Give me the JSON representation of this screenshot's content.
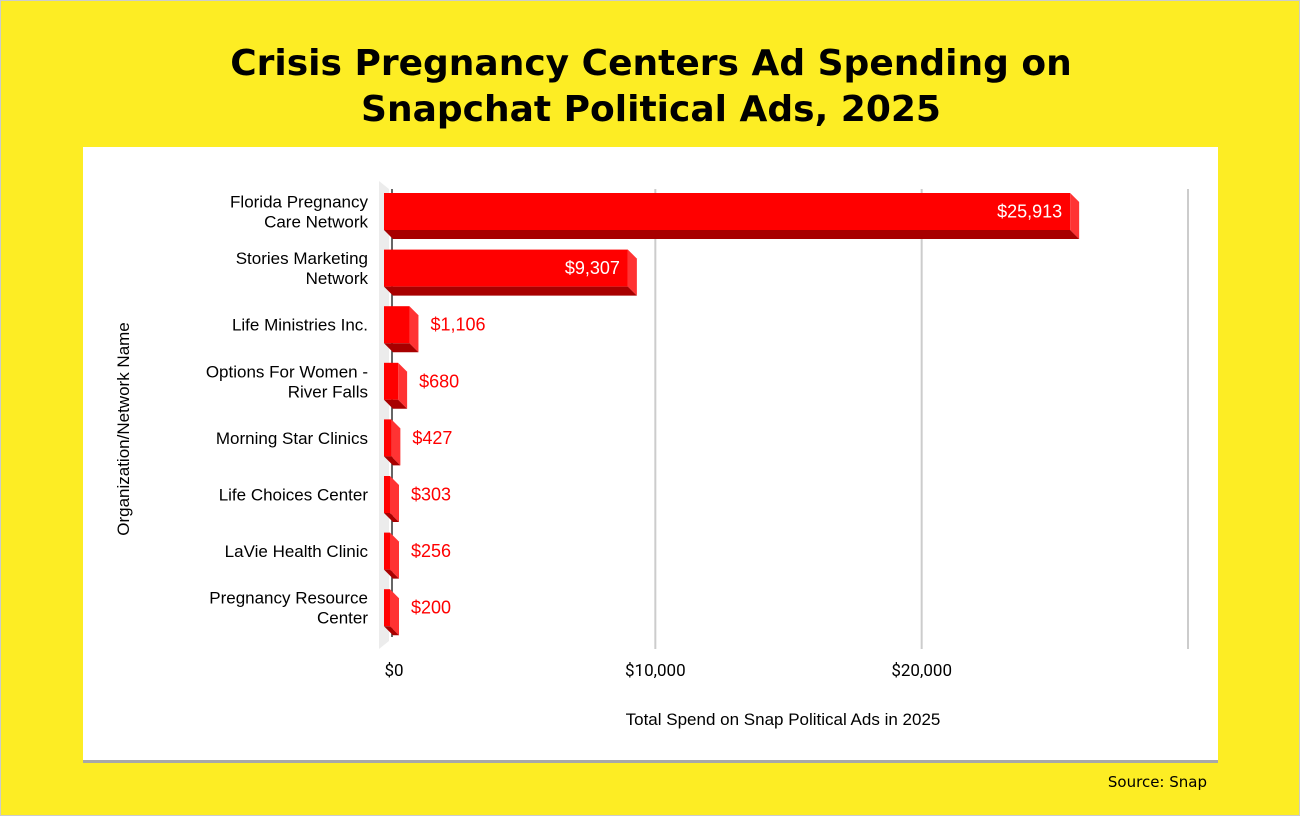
{
  "chart_data": {
    "type": "bar",
    "orientation": "horizontal",
    "title": "Crisis Pregnancy Centers Ad Spending on Snapchat Political Ads, 2025",
    "title_lines": [
      "Crisis Pregnancy Centers Ad Spending on",
      "Snapchat Political Ads, 2025"
    ],
    "categories": [
      [
        "Florida Pregnancy",
        "Care Network"
      ],
      [
        "Stories Marketing",
        "Network"
      ],
      [
        "Life Ministries Inc."
      ],
      [
        "Options For Women -",
        "River Falls"
      ],
      [
        "Morning Star Clinics"
      ],
      [
        "Life Choices Center"
      ],
      [
        "LaVie Health Clinic"
      ],
      [
        "Pregnancy Resource",
        "Center"
      ]
    ],
    "values": [
      25913,
      9307,
      1106,
      680,
      427,
      303,
      256,
      200
    ],
    "data_labels": [
      "$25,913",
      "$9,307",
      "$1,106",
      "$680",
      "$427",
      "$303",
      "$256",
      "$200"
    ],
    "xlabel": "Total Spend on Snap Political Ads in 2025",
    "ylabel": "Organization/Network Name",
    "xlim": [
      0,
      30000
    ],
    "xticks": [
      0,
      10000,
      20000,
      30000
    ],
    "xtick_labels": [
      "$0",
      "$10,000",
      "$20,000",
      ""
    ],
    "grid": true,
    "colors": {
      "bar": "#ff0000",
      "bar_side": "#ff3333",
      "bar_bottom": "#a80000",
      "label_outside": "#ff0000",
      "label_inside": "#ffffff"
    }
  },
  "source": "Source: Snap"
}
